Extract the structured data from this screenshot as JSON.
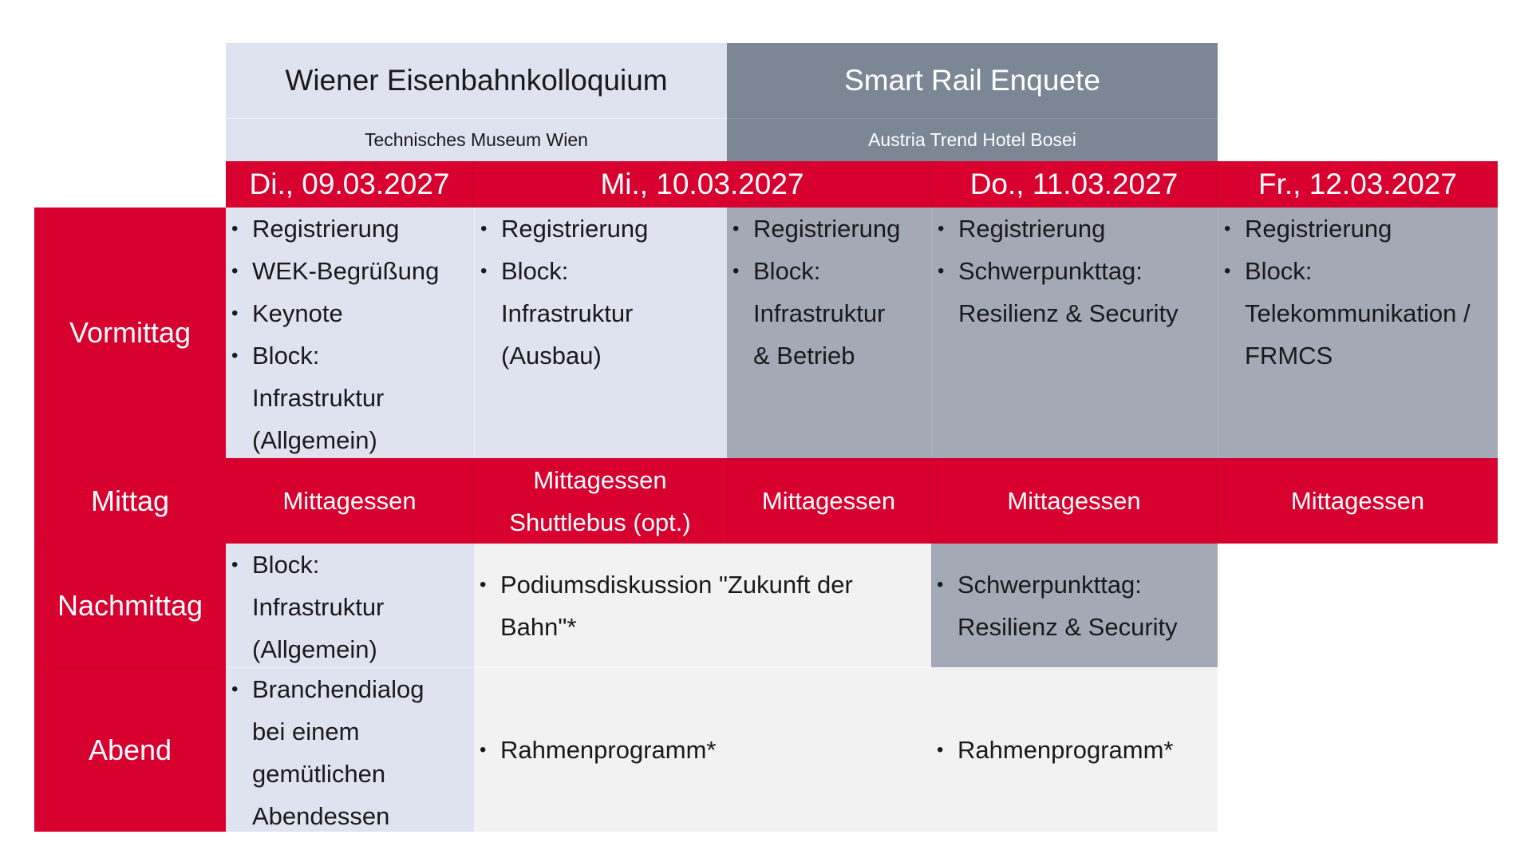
{
  "events": [
    {
      "title": "Wiener Eisenbahnkolloquium",
      "venue": "Technisches Museum Wien"
    },
    {
      "title": "Smart Rail Enquete",
      "venue": "Austria Trend Hotel Bosei"
    }
  ],
  "dates": [
    "Di., 09.03.2027",
    "Mi., 10.03.2027",
    "Do., 11.03.2027",
    "Fr., 12.03.2027"
  ],
  "rows": {
    "vormittag": "Vormittag",
    "mittag": "Mittag",
    "nachmittag": "Nachmittag",
    "abend": "Abend"
  },
  "vormittag": {
    "di": [
      "Registrierung",
      "WEK-Begrüßung",
      "Keynote",
      "Block: Infrastruktur (Allgemein)"
    ],
    "mi_wek": [
      "Registrierung",
      "Block: Infrastruktur (Ausbau)"
    ],
    "mi_sre": [
      "Registrierung",
      "Block: Infrastruktur & Betrieb"
    ],
    "do": [
      "Registrierung",
      "Schwerpunkttag: Resilienz & Security"
    ],
    "fr": [
      "Registrierung",
      "Block: Telekommunikation / FRMCS"
    ]
  },
  "mittag": {
    "di": "Mittagessen",
    "mi_wek_1": "Mittagessen",
    "mi_wek_2": "Shuttlebus (opt.)",
    "mi_sre": "Mittagessen",
    "do": "Mittagessen",
    "fr": "Mittagessen"
  },
  "nachmittag": {
    "di": "Block: Infrastruktur (Allgemein)",
    "mi": "Podiumsdiskussion \"Zukunft der Bahn\"*",
    "do": "Schwerpunkttag: Resilienz & Security"
  },
  "abend": {
    "di": "Branchendialog bei einem gemütlichen Abendessen",
    "mi": "Rahmenprogramm*",
    "do": "Rahmenprogramm*"
  },
  "colors": {
    "red": "#d7002e",
    "wek": "#dfe3ef",
    "sre_header": "#7b8794",
    "sre": "#a3a9b5",
    "neutral": "#f2f2f2"
  }
}
